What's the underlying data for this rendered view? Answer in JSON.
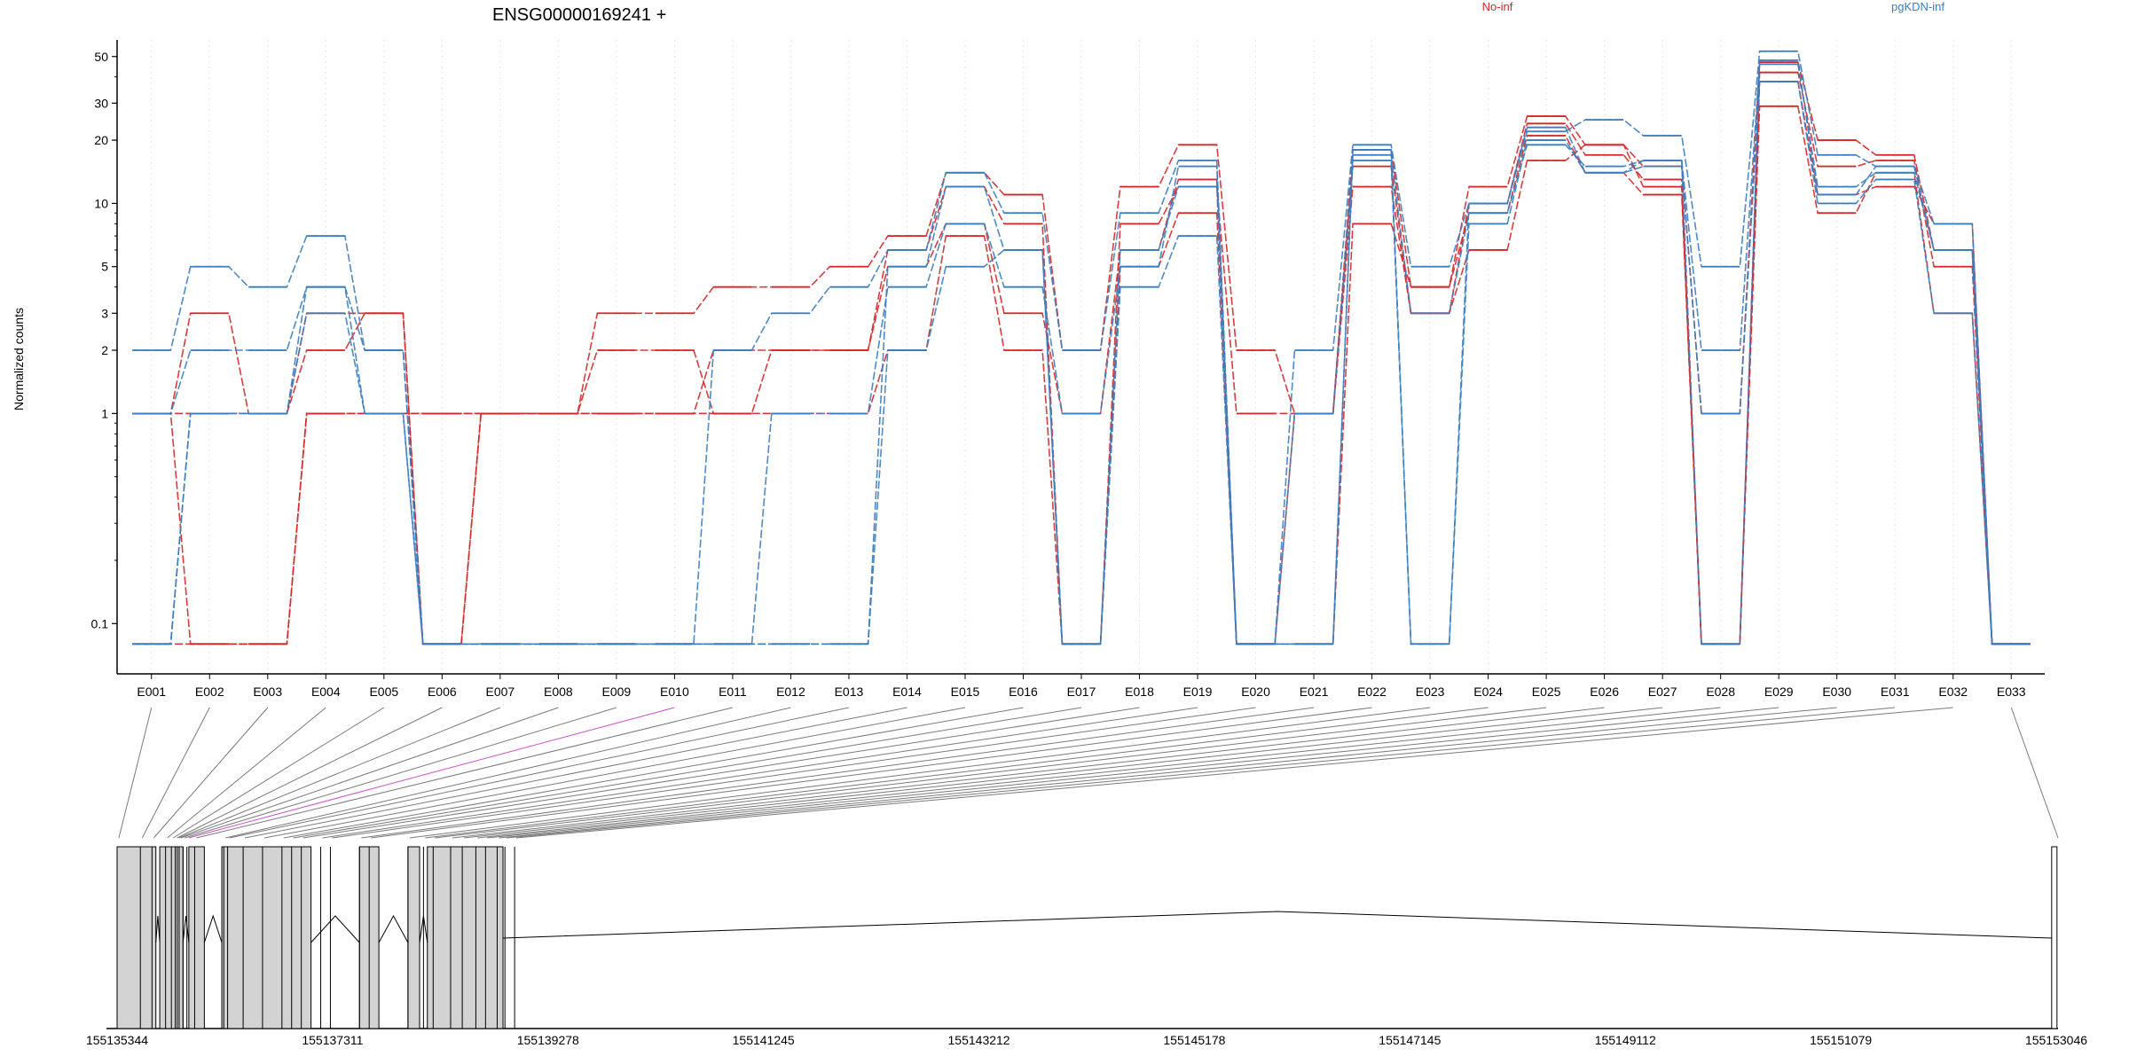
{
  "chart_data": {
    "type": "line",
    "title": "ENSG00000169241 +",
    "ylabel": "Normalized counts",
    "xlabel": "",
    "yscale": "log",
    "ylim": [
      0.07,
      60
    ],
    "yticks": [
      "0.1",
      "1",
      "2",
      "3",
      "5",
      "10",
      "20",
      "30",
      "50"
    ],
    "grid": "vertical dotted",
    "legend_placement": "top",
    "legend": [
      {
        "name": "No-inf",
        "color": "#d62728"
      },
      {
        "name": "pgKDN-inf",
        "color": "#3a7dc0"
      }
    ],
    "categories": [
      "E001",
      "E002",
      "E003",
      "E004",
      "E005",
      "E006",
      "E007",
      "E008",
      "E009",
      "E010",
      "E011",
      "E012",
      "E013",
      "E014",
      "E015",
      "E016",
      "E017",
      "E018",
      "E019",
      "E020",
      "E021",
      "E022",
      "E023",
      "E024",
      "E025",
      "E026",
      "E027",
      "E028",
      "E029",
      "E030",
      "E031",
      "E032",
      "E033"
    ],
    "zero_plotted_at": 0.08,
    "series": [
      {
        "group": "No-inf",
        "color": "#d62728",
        "values": [
          1,
          3,
          1,
          2,
          3,
          0,
          1,
          1,
          3,
          3,
          4,
          4,
          5,
          7,
          14,
          11,
          2,
          12,
          19,
          2,
          1,
          18,
          4,
          12,
          26,
          19,
          15,
          1,
          47,
          20,
          17,
          6,
          0
        ]
      },
      {
        "group": "No-inf",
        "color": "#d62728",
        "values": [
          1,
          1,
          1,
          3,
          3,
          0,
          1,
          1,
          2,
          2,
          1,
          2,
          2,
          6,
          12,
          8,
          0,
          8,
          12,
          1,
          1,
          15,
          3,
          10,
          24,
          17,
          13,
          0,
          42,
          15,
          16,
          5,
          0
        ]
      },
      {
        "group": "No-inf",
        "color": "#d62728",
        "values": [
          0,
          0,
          0,
          1,
          1,
          1,
          1,
          1,
          1,
          1,
          2,
          2,
          2,
          5,
          8,
          3,
          1,
          6,
          13,
          0,
          0,
          8,
          4,
          9,
          21,
          14,
          11,
          0,
          38,
          11,
          12,
          8,
          0
        ]
      },
      {
        "group": "No-inf",
        "color": "#d62728",
        "values": [
          1,
          0,
          0,
          1,
          1,
          1,
          1,
          1,
          1,
          1,
          1,
          1,
          1,
          2,
          7,
          2,
          0,
          5,
          9,
          0,
          1,
          12,
          3,
          6,
          16,
          19,
          12,
          0,
          29,
          9,
          14,
          3,
          0
        ]
      },
      {
        "group": "pgKDN-inf",
        "color": "#3a7dc0",
        "values": [
          2,
          5,
          4,
          7,
          2,
          0,
          0,
          0,
          0,
          0,
          2,
          3,
          4,
          6,
          14,
          9,
          2,
          9,
          16,
          0,
          2,
          19,
          5,
          10,
          22,
          25,
          21,
          5,
          53,
          17,
          15,
          8,
          0
        ]
      },
      {
        "group": "pgKDN-inf",
        "color": "#3a7dc0",
        "values": [
          1,
          2,
          2,
          4,
          1,
          0,
          0,
          0,
          0,
          0,
          0,
          1,
          1,
          4,
          8,
          4,
          1,
          5,
          15,
          0,
          0,
          17,
          3,
          9,
          19,
          15,
          16,
          2,
          46,
          12,
          14,
          6,
          0
        ]
      },
      {
        "group": "pgKDN-inf",
        "color": "#3a7dc0",
        "values": [
          0,
          1,
          1,
          3,
          1,
          0,
          0,
          0,
          0,
          0,
          0,
          0,
          0,
          2,
          5,
          6,
          0,
          4,
          7,
          0,
          1,
          16,
          0,
          8,
          20,
          14,
          15,
          1,
          38,
          10,
          13,
          3,
          0
        ]
      },
      {
        "group": "pgKDN-inf",
        "color": "#3a7dc0",
        "values": [
          0,
          1,
          1,
          4,
          2,
          0,
          0,
          0,
          0,
          0,
          0,
          0,
          0,
          5,
          12,
          6,
          0,
          6,
          12,
          0,
          0,
          18,
          0,
          10,
          23,
          14,
          16,
          0,
          48,
          11,
          15,
          6,
          0
        ]
      }
    ],
    "genomic_track": {
      "start_label": "155135344",
      "end_label": "155153046",
      "coordinate_ticks": [
        "155135344",
        "155137311",
        "155139278",
        "155141245",
        "155143212",
        "155145178",
        "155147145",
        "155149112",
        "155151079",
        "155153046"
      ],
      "highlighted_exon": "E010",
      "highlight_color": "#c94fc9",
      "exon_fill": "#d3d3d3"
    }
  }
}
